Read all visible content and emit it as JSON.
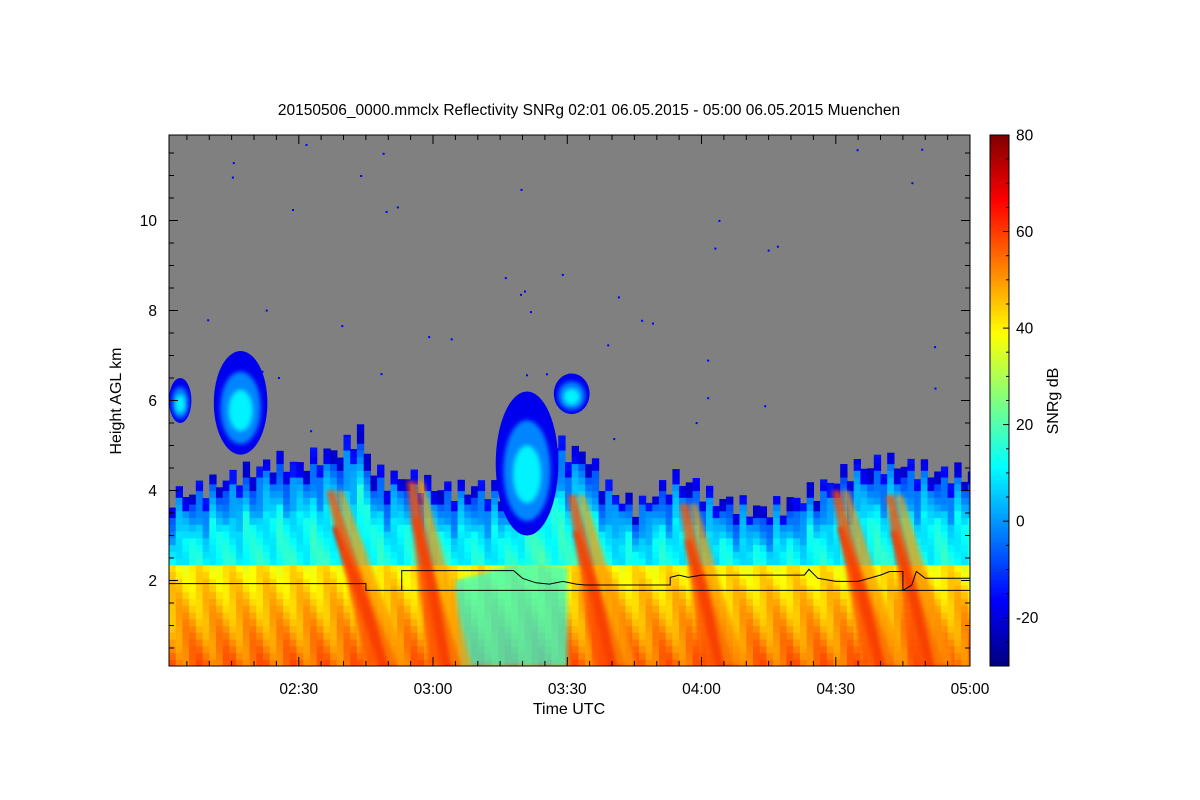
{
  "chart_data": {
    "type": "heatmap",
    "title": "20150506_0000.mmclx Reflectivity SNRg   02:01 06.05.2015 - 05:00 06.05.2015 Muenchen",
    "xlabel": "Time UTC",
    "ylabel": "Height AGL km",
    "colorbar_label": "SNRg dB",
    "x_range_minutes_utc": [
      121,
      300
    ],
    "x_ticks": [
      {
        "label": "02:30",
        "minutes": 150
      },
      {
        "label": "03:00",
        "minutes": 180
      },
      {
        "label": "03:30",
        "minutes": 210
      },
      {
        "label": "04:00",
        "minutes": 240
      },
      {
        "label": "04:30",
        "minutes": 270
      },
      {
        "label": "05:00",
        "minutes": 300
      }
    ],
    "y_range_km": [
      0.1,
      11.9
    ],
    "y_ticks": [
      2,
      4,
      6,
      8,
      10
    ],
    "colorbar_range_db": [
      -30,
      80
    ],
    "colorbar_ticks": [
      -20,
      0,
      20,
      40,
      60,
      80
    ],
    "colormap": [
      "#00007f",
      "#0000ff",
      "#0080ff",
      "#00ffff",
      "#80ff80",
      "#ffff00",
      "#ff8000",
      "#ff0000",
      "#7f0000"
    ],
    "background_no_signal_color": "#808080",
    "line_series": [
      {
        "points": [
          [
            121,
            1.93
          ],
          [
            165,
            1.93
          ],
          [
            165,
            1.78
          ],
          [
            173,
            1.78
          ],
          [
            300,
            1.78
          ]
        ]
      },
      {
        "points": [
          [
            173,
            1.78
          ],
          [
            173,
            2.22
          ],
          [
            198,
            2.22
          ],
          [
            200,
            2.05
          ],
          [
            203,
            1.95
          ],
          [
            206,
            1.92
          ],
          [
            209,
            1.98
          ],
          [
            212,
            1.92
          ],
          [
            214,
            1.9
          ],
          [
            233,
            1.9
          ],
          [
            233,
            2.07
          ],
          [
            235,
            2.12
          ],
          [
            237,
            2.07
          ],
          [
            240,
            2.12
          ],
          [
            263,
            2.12
          ],
          [
            264,
            2.25
          ],
          [
            266,
            2.05
          ],
          [
            270,
            1.98
          ],
          [
            275,
            1.98
          ],
          [
            280,
            2.12
          ],
          [
            282,
            2.2
          ],
          [
            285,
            2.2
          ],
          [
            285,
            1.78
          ],
          [
            287,
            1.9
          ],
          [
            288,
            2.2
          ],
          [
            290,
            2.05
          ],
          [
            300,
            2.05
          ]
        ]
      }
    ],
    "echo_top_km": [
      [
        121,
        4.0
      ],
      [
        125,
        4.05
      ],
      [
        130,
        4.15
      ],
      [
        135,
        4.25
      ],
      [
        140,
        4.35
      ],
      [
        145,
        4.5
      ],
      [
        150,
        4.4
      ],
      [
        155,
        4.7
      ],
      [
        160,
        4.9
      ],
      [
        164,
        5.4
      ],
      [
        166,
        4.6
      ],
      [
        170,
        4.35
      ],
      [
        174,
        4.5
      ],
      [
        178,
        4.3
      ],
      [
        182,
        4.15
      ],
      [
        186,
        4.05
      ],
      [
        190,
        4.1
      ],
      [
        194,
        3.9
      ],
      [
        196,
        3.8
      ],
      [
        199,
        4.7
      ],
      [
        203,
        5.1
      ],
      [
        207,
        5.0
      ],
      [
        210,
        4.75
      ],
      [
        214,
        4.8
      ],
      [
        218,
        4.2
      ],
      [
        222,
        3.9
      ],
      [
        226,
        3.75
      ],
      [
        230,
        4.1
      ],
      [
        234,
        4.4
      ],
      [
        238,
        4.3
      ],
      [
        242,
        3.9
      ],
      [
        246,
        3.75
      ],
      [
        250,
        3.55
      ],
      [
        254,
        3.45
      ],
      [
        258,
        3.5
      ],
      [
        262,
        3.7
      ],
      [
        266,
        3.9
      ],
      [
        270,
        4.2
      ],
      [
        274,
        4.5
      ],
      [
        278,
        4.65
      ],
      [
        282,
        4.75
      ],
      [
        286,
        4.7
      ],
      [
        290,
        4.6
      ],
      [
        295,
        4.5
      ],
      [
        300,
        4.4
      ]
    ],
    "upper_cloud_patches": [
      {
        "t": [
          121,
          126
        ],
        "km": [
          5.5,
          6.5
        ]
      },
      {
        "t": [
          131,
          143
        ],
        "km": [
          4.8,
          7.1
        ]
      },
      {
        "t": [
          194,
          208
        ],
        "km": [
          3.0,
          6.2
        ]
      },
      {
        "t": [
          207,
          215
        ],
        "km": [
          5.7,
          6.6
        ]
      }
    ],
    "intense_plumes": [
      {
        "t_top": 158,
        "km_top": 4.4,
        "t_base": 170
      },
      {
        "t_top": 176,
        "km_top": 4.6,
        "t_base": 184
      },
      {
        "t_top": 212,
        "km_top": 4.3,
        "t_base": 221
      },
      {
        "t_top": 237,
        "km_top": 4.1,
        "t_base": 245
      },
      {
        "t_top": 271,
        "km_top": 4.4,
        "t_base": 281
      },
      {
        "t_top": 283,
        "km_top": 4.3,
        "t_base": 292
      }
    ]
  }
}
